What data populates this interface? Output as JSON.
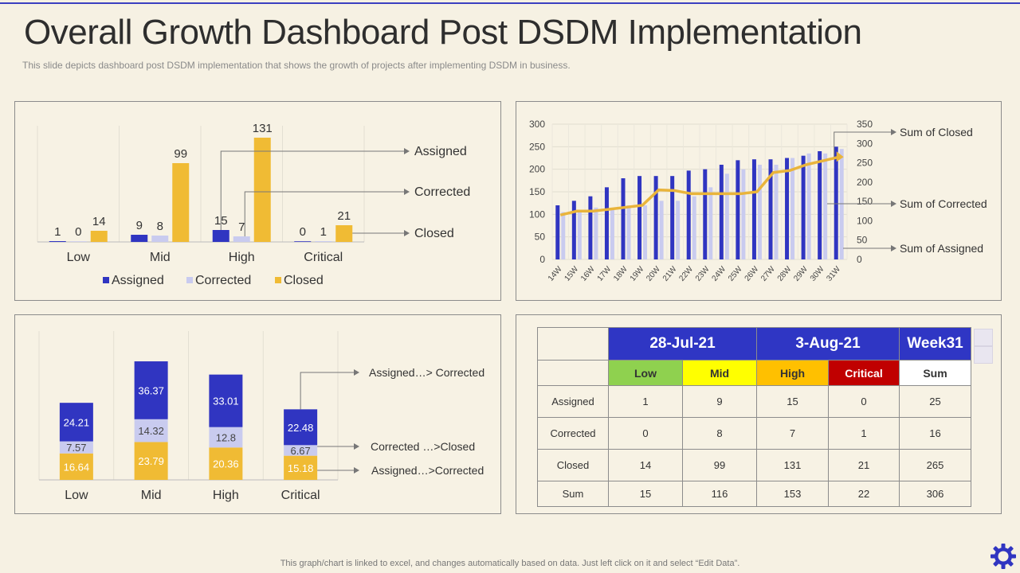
{
  "title": "Overall Growth Dashboard Post DSDM Implementation",
  "subtitle": "This slide depicts dashboard  post DSDM implementation that shows the growth of projects after implementing DSDM in business.",
  "footer": "This graph/chart is linked to excel,  and changes automatically based on data. Just left click on it and select “Edit Data”.",
  "colors": {
    "assigned": "#3035c1",
    "corrected": "#c9cbef",
    "closed": "#f0bb34",
    "line": "#e9b43b"
  },
  "chart_data": [
    {
      "type": "bar",
      "title": "",
      "categories": [
        "Low",
        "Mid",
        "High",
        "Critical"
      ],
      "series": [
        {
          "name": "Assigned",
          "values": [
            1,
            9,
            15,
            0
          ]
        },
        {
          "name": "Corrected",
          "values": [
            0,
            8,
            7,
            1
          ]
        },
        {
          "name": "Closed",
          "values": [
            14,
            99,
            131,
            21
          ]
        }
      ],
      "ylim": [
        0,
        140
      ],
      "legend": "bottom",
      "annotations": [
        "Assigned",
        "Corrected",
        "Closed"
      ]
    },
    {
      "type": "bar",
      "subtype": "combo-line",
      "x": [
        "14W",
        "15W",
        "16W",
        "17W",
        "18W",
        "19W",
        "20W",
        "21W",
        "22W",
        "23W",
        "24W",
        "25W",
        "26W",
        "27W",
        "28W",
        "29W",
        "30W",
        "31W"
      ],
      "series": [
        {
          "name": "Sum of Assigned",
          "values": [
            120,
            130,
            140,
            160,
            180,
            185,
            185,
            185,
            197,
            200,
            210,
            220,
            222,
            222,
            225,
            230,
            240,
            250
          ]
        },
        {
          "name": "Sum of Corrected",
          "values": [
            105,
            110,
            115,
            110,
            120,
            120,
            130,
            130,
            140,
            160,
            190,
            200,
            210,
            210,
            225,
            235,
            235,
            245
          ]
        },
        {
          "name": "Sum of Closed",
          "axis": "right",
          "values": [
            115,
            125,
            125,
            130,
            135,
            140,
            180,
            178,
            170,
            170,
            170,
            170,
            175,
            225,
            230,
            245,
            255,
            265
          ]
        }
      ],
      "ylim_left": [
        0,
        300
      ],
      "yticks_left": [
        0,
        50,
        100,
        150,
        200,
        250,
        300
      ],
      "ylim_right": [
        0,
        350
      ],
      "yticks_right": [
        0,
        50,
        100,
        150,
        200,
        250,
        300,
        350
      ],
      "annotations": [
        "Sum of Closed",
        "Sum of Corrected",
        "Sum of Assigned"
      ]
    },
    {
      "type": "bar",
      "subtype": "stacked-percent",
      "categories": [
        "Low",
        "Mid",
        "High",
        "Critical"
      ],
      "series": [
        {
          "name": "Assigned...>Corrected",
          "values": [
            16.64,
            23.79,
            20.36,
            15.18
          ]
        },
        {
          "name": "Corrected ...>Closed",
          "values": [
            7.57,
            14.32,
            12.8,
            6.67
          ]
        },
        {
          "name": "Assigned...> Corrected",
          "values": [
            24.21,
            36.37,
            33.01,
            22.48
          ]
        }
      ],
      "annotations": [
        "Assigned…> Corrected",
        "Corrected …>Closed",
        "Assigned…>Corrected"
      ]
    },
    {
      "type": "table",
      "dates": [
        "28-Jul-21",
        "3-Aug-21",
        "Week31"
      ],
      "levels": [
        "Low",
        "Mid",
        "High",
        "Critical",
        "Sum"
      ],
      "rows": [
        {
          "label": "Assigned",
          "values": [
            "1",
            "9",
            "15",
            "0",
            "25"
          ]
        },
        {
          "label": "Corrected",
          "values": [
            "0",
            "8",
            "7",
            "1",
            "16"
          ]
        },
        {
          "label": "Closed",
          "values": [
            "14",
            "99",
            "131",
            "21",
            "265"
          ]
        },
        {
          "label": "Sum",
          "values": [
            "15",
            "116",
            "153",
            "22",
            "306"
          ]
        }
      ]
    }
  ]
}
